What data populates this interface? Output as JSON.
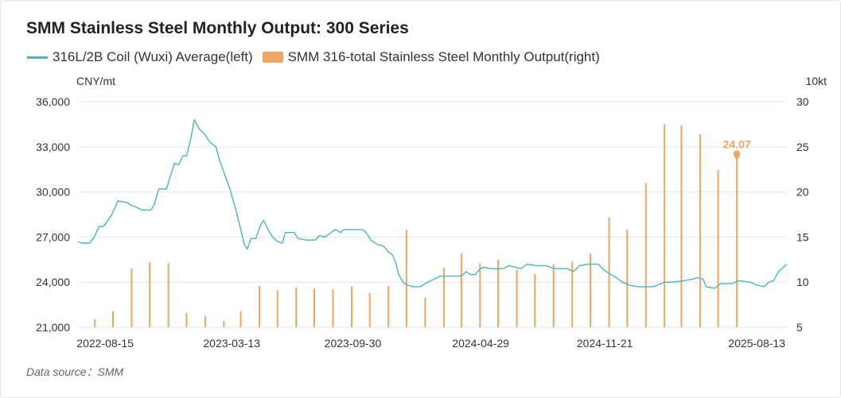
{
  "title": "SMM Stainless Steel Monthly Output: 300 Series",
  "legend": {
    "line_label": "316L/2B Coil (Wuxi) Average(left)",
    "bar_label": "SMM 316-total Stainless Steel Monthly Output(right)"
  },
  "units": {
    "left": "CNY/mt",
    "right": "10kt"
  },
  "source": "Data source：SMM",
  "colors": {
    "line": "#4bb3bf",
    "bar": "#f0a663",
    "grid": "#e6e6e6"
  },
  "chart_data": {
    "type": "line+bar",
    "title": "SMM Stainless Steel Monthly Output: 300 Series",
    "x_tick_labels": [
      "2022-08-15",
      "2023-03-13",
      "2023-09-30",
      "2024-04-29",
      "2024-11-21",
      "2025-08-13"
    ],
    "x_range": [
      "2022-07-01",
      "2025-09-19"
    ],
    "y_left": {
      "label": "CNY/mt",
      "ticks": [
        21000,
        24000,
        27000,
        30000,
        33000,
        36000
      ],
      "range": [
        21000,
        36000
      ]
    },
    "y_right": {
      "label": "10kt",
      "ticks": [
        5,
        10,
        15,
        20,
        25,
        30
      ],
      "range": [
        5,
        30
      ]
    },
    "grid": true,
    "legend_position": "top-left",
    "line_series": {
      "name": "316L/2B Coil (Wuxi) Average(left)",
      "axis": "left",
      "points": [
        [
          "2022-07-01",
          26700
        ],
        [
          "2022-07-08",
          26600
        ],
        [
          "2022-07-20",
          26600
        ],
        [
          "2022-07-28",
          27000
        ],
        [
          "2022-08-05",
          27700
        ],
        [
          "2022-08-12",
          27700
        ],
        [
          "2022-08-18",
          28000
        ],
        [
          "2022-08-26",
          28500
        ],
        [
          "2022-09-01",
          29000
        ],
        [
          "2022-09-05",
          29400
        ],
        [
          "2022-09-20",
          29300
        ],
        [
          "2022-09-28",
          29100
        ],
        [
          "2022-10-05",
          29000
        ],
        [
          "2022-10-15",
          28800
        ],
        [
          "2022-10-30",
          28800
        ],
        [
          "2022-11-05",
          29200
        ],
        [
          "2022-11-12",
          30200
        ],
        [
          "2022-11-25",
          30200
        ],
        [
          "2022-12-01",
          31000
        ],
        [
          "2022-12-08",
          31900
        ],
        [
          "2022-12-15",
          31800
        ],
        [
          "2022-12-22",
          32400
        ],
        [
          "2022-12-28",
          32400
        ],
        [
          "2023-01-04",
          33500
        ],
        [
          "2023-01-10",
          34800
        ],
        [
          "2023-01-18",
          34200
        ],
        [
          "2023-01-28",
          33800
        ],
        [
          "2023-02-05",
          33300
        ],
        [
          "2023-02-15",
          33000
        ],
        [
          "2023-02-20",
          32200
        ],
        [
          "2023-03-01",
          31200
        ],
        [
          "2023-03-10",
          30200
        ],
        [
          "2023-03-20",
          28800
        ],
        [
          "2023-03-28",
          27500
        ],
        [
          "2023-04-03",
          26500
        ],
        [
          "2023-04-08",
          26200
        ],
        [
          "2023-04-14",
          26900
        ],
        [
          "2023-04-22",
          26900
        ],
        [
          "2023-05-01",
          27900
        ],
        [
          "2023-05-05",
          28100
        ],
        [
          "2023-05-12",
          27500
        ],
        [
          "2023-05-20",
          27000
        ],
        [
          "2023-05-28",
          26700
        ],
        [
          "2023-06-05",
          26600
        ],
        [
          "2023-06-10",
          27300
        ],
        [
          "2023-06-25",
          27300
        ],
        [
          "2023-07-01",
          26900
        ],
        [
          "2023-07-15",
          26800
        ],
        [
          "2023-07-30",
          26800
        ],
        [
          "2023-08-05",
          27100
        ],
        [
          "2023-08-15",
          27000
        ],
        [
          "2023-08-25",
          27300
        ],
        [
          "2023-09-01",
          27500
        ],
        [
          "2023-09-10",
          27300
        ],
        [
          "2023-09-15",
          27500
        ],
        [
          "2023-10-15",
          27500
        ],
        [
          "2023-10-22",
          27300
        ],
        [
          "2023-10-30",
          26800
        ],
        [
          "2023-11-10",
          26500
        ],
        [
          "2023-11-20",
          26400
        ],
        [
          "2023-11-28",
          26000
        ],
        [
          "2023-12-05",
          25800
        ],
        [
          "2023-12-10",
          25300
        ],
        [
          "2023-12-15",
          24500
        ],
        [
          "2023-12-22",
          24000
        ],
        [
          "2023-12-30",
          23800
        ],
        [
          "2024-01-08",
          23700
        ],
        [
          "2024-01-20",
          23700
        ],
        [
          "2024-02-01",
          24000
        ],
        [
          "2024-02-12",
          24200
        ],
        [
          "2024-02-22",
          24400
        ],
        [
          "2024-03-10",
          24400
        ],
        [
          "2024-03-28",
          24400
        ],
        [
          "2024-04-05",
          24700
        ],
        [
          "2024-04-12",
          24500
        ],
        [
          "2024-04-20",
          24500
        ],
        [
          "2024-04-28",
          24900
        ],
        [
          "2024-05-05",
          25000
        ],
        [
          "2024-05-15",
          24900
        ],
        [
          "2024-06-05",
          24900
        ],
        [
          "2024-06-15",
          25100
        ],
        [
          "2024-06-25",
          25000
        ],
        [
          "2024-07-05",
          24900
        ],
        [
          "2024-07-15",
          25200
        ],
        [
          "2024-07-30",
          25100
        ],
        [
          "2024-08-15",
          25100
        ],
        [
          "2024-08-30",
          24900
        ],
        [
          "2024-09-20",
          24900
        ],
        [
          "2024-09-30",
          24700
        ],
        [
          "2024-10-10",
          25100
        ],
        [
          "2024-10-25",
          25200
        ],
        [
          "2024-11-10",
          25200
        ],
        [
          "2024-11-20",
          24800
        ],
        [
          "2024-12-01",
          24500
        ],
        [
          "2024-12-10",
          24300
        ],
        [
          "2024-12-20",
          24000
        ],
        [
          "2025-01-01",
          23800
        ],
        [
          "2025-01-15",
          23700
        ],
        [
          "2025-02-10",
          23700
        ],
        [
          "2025-02-28",
          24000
        ],
        [
          "2025-03-15",
          24000
        ],
        [
          "2025-04-01",
          24100
        ],
        [
          "2025-04-15",
          24200
        ],
        [
          "2025-04-25",
          24300
        ],
        [
          "2025-05-03",
          24200
        ],
        [
          "2025-05-08",
          23700
        ],
        [
          "2025-05-22",
          23600
        ],
        [
          "2025-06-01",
          23900
        ],
        [
          "2025-06-20",
          23900
        ],
        [
          "2025-07-01",
          24100
        ],
        [
          "2025-07-20",
          24000
        ],
        [
          "2025-08-01",
          23800
        ],
        [
          "2025-08-12",
          23700
        ],
        [
          "2025-08-20",
          24000
        ],
        [
          "2025-08-28",
          24100
        ],
        [
          "2025-09-05",
          24700
        ],
        [
          "2025-09-19",
          25200
        ]
      ]
    },
    "bar_series": {
      "name": "SMM 316-total Stainless Steel Monthly Output(right)",
      "axis": "right",
      "points": [
        [
          "2022-07-29",
          5.9
        ],
        [
          "2022-08-28",
          6.8
        ],
        [
          "2022-09-28",
          11.5
        ],
        [
          "2022-10-28",
          12.2
        ],
        [
          "2022-11-28",
          12.1
        ],
        [
          "2022-12-28",
          6.6
        ],
        [
          "2023-01-28",
          6.3
        ],
        [
          "2023-02-28",
          5.7
        ],
        [
          "2023-03-28",
          6.8
        ],
        [
          "2023-04-28",
          9.6
        ],
        [
          "2023-05-28",
          9.1
        ],
        [
          "2023-06-28",
          9.4
        ],
        [
          "2023-07-28",
          9.3
        ],
        [
          "2023-08-28",
          9.2
        ],
        [
          "2023-09-28",
          9.5
        ],
        [
          "2023-10-28",
          8.8
        ],
        [
          "2023-11-28",
          9.6
        ],
        [
          "2023-12-28",
          15.8
        ],
        [
          "2024-01-28",
          8.3
        ],
        [
          "2024-02-28",
          11.6
        ],
        [
          "2024-03-28",
          13.2
        ],
        [
          "2024-04-28",
          12.1
        ],
        [
          "2024-05-28",
          12.5
        ],
        [
          "2024-06-28",
          11.4
        ],
        [
          "2024-07-28",
          10.9
        ],
        [
          "2024-08-28",
          12.0
        ],
        [
          "2024-09-28",
          12.3
        ],
        [
          "2024-10-28",
          13.2
        ],
        [
          "2024-11-28",
          17.2
        ],
        [
          "2024-12-28",
          15.8
        ],
        [
          "2025-01-28",
          21.0
        ],
        [
          "2025-02-28",
          27.5
        ],
        [
          "2025-03-28",
          27.4
        ],
        [
          "2025-04-28",
          26.4
        ],
        [
          "2025-05-28",
          22.4
        ],
        [
          "2025-06-28",
          24.07
        ]
      ],
      "highlight": {
        "x": "2025-06-28",
        "value": 24.07,
        "label": "24.07"
      }
    }
  }
}
